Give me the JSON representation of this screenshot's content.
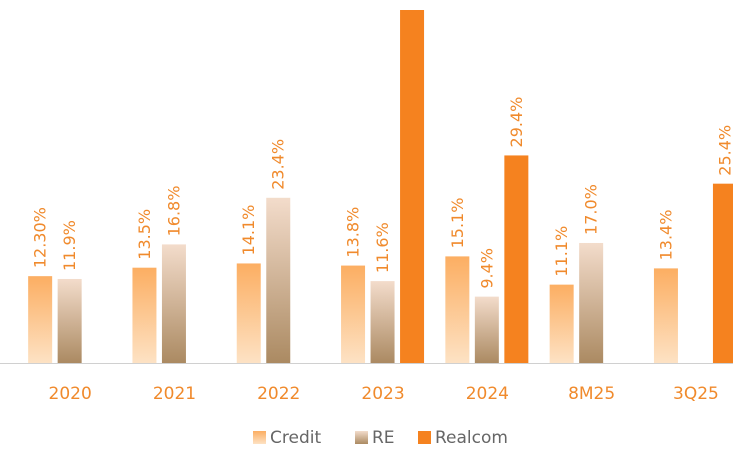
{
  "chart_data": {
    "type": "bar",
    "categories": [
      "2020",
      "2021",
      "2022",
      "2023",
      "2024",
      "8M25",
      "3Q25"
    ],
    "series": [
      {
        "name": "Credit",
        "color": "#fcb066",
        "values": [
          12.3,
          13.5,
          14.1,
          13.8,
          15.1,
          11.1,
          13.4
        ],
        "value_labels": [
          "12.30%",
          "13.5%",
          "14.1%",
          "13.8%",
          "15.1%",
          "11.1%",
          "13.4%"
        ]
      },
      {
        "name": "RE",
        "color": "#b8966e",
        "values": [
          11.9,
          16.8,
          23.4,
          11.6,
          9.4,
          17,
          null
        ],
        "value_labels": [
          "11.9%",
          "16.8%",
          "23.4%",
          "11.6%",
          "9.4%",
          "17.0%",
          null
        ]
      },
      {
        "name": "Realcom",
        "color": "#f5821f",
        "values": [
          null,
          null,
          null,
          50,
          29.4,
          null,
          25.4
        ],
        "value_labels": [
          null,
          null,
          null,
          null,
          "29.4%",
          null,
          "25.4%"
        ]
      }
    ],
    "ylim": [
      0,
      50
    ]
  }
}
